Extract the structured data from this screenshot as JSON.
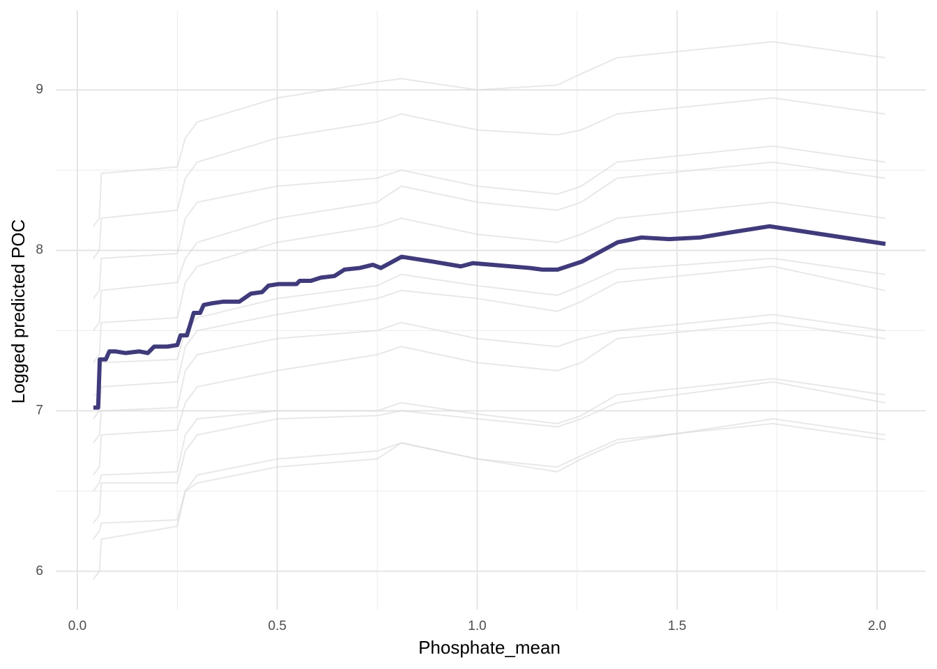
{
  "chart_data": {
    "type": "line",
    "x_label": "Phosphate_mean",
    "y_label": "Logged predicted POC",
    "xlim": [
      -0.054,
      2.122
    ],
    "ylim": [
      5.76,
      9.495
    ],
    "xticks": [
      {
        "value": 0,
        "label": "0.0"
      },
      0.5,
      {
        "value": 1,
        "label": "1.0"
      },
      1.5,
      {
        "value": 2,
        "label": "2.0"
      }
    ],
    "yticks": [
      6,
      7,
      8,
      9
    ],
    "x_minor_ticks": [
      0.25,
      0.75,
      1.25,
      1.75
    ],
    "y_minor_ticks": [
      6.5,
      7.5,
      8.5
    ],
    "grid": true,
    "series": [
      {
        "color": "#3f3b7b",
        "x": [
          0.04,
          0.052,
          0.056,
          0.071,
          0.08,
          0.096,
          0.12,
          0.155,
          0.176,
          0.192,
          0.225,
          0.25,
          0.258,
          0.274,
          0.291,
          0.307,
          0.316,
          0.337,
          0.364,
          0.405,
          0.434,
          0.462,
          0.478,
          0.504,
          0.548,
          0.556,
          0.584,
          0.609,
          0.643,
          0.668,
          0.706,
          0.739,
          0.759,
          0.811,
          0.888,
          0.959,
          0.989,
          1.132,
          1.163,
          1.201,
          1.262,
          1.351,
          1.411,
          1.48,
          1.557,
          1.629,
          1.731,
          2.021
        ],
        "values": [
          7.02,
          7.02,
          7.32,
          7.32,
          7.37,
          7.37,
          7.36,
          7.37,
          7.36,
          7.4,
          7.4,
          7.41,
          7.47,
          7.47,
          7.61,
          7.61,
          7.66,
          7.67,
          7.68,
          7.68,
          7.73,
          7.74,
          7.78,
          7.79,
          7.79,
          7.81,
          7.81,
          7.83,
          7.84,
          7.88,
          7.89,
          7.91,
          7.89,
          7.96,
          7.93,
          7.9,
          7.92,
          7.89,
          7.88,
          7.88,
          7.93,
          8.05,
          8.08,
          8.07,
          8.08,
          8.11,
          8.15,
          8.04
        ]
      },
      {
        "color": "#d9d9d9",
        "x": [
          0.04,
          0.055,
          0.06,
          0.25,
          0.27,
          0.3,
          0.5,
          0.75,
          0.81,
          1.0,
          1.2,
          1.26,
          1.35,
          1.74,
          2.02
        ],
        "values": [
          8.15,
          8.2,
          8.48,
          8.52,
          8.7,
          8.8,
          8.95,
          9.05,
          9.07,
          9.0,
          9.03,
          9.1,
          9.2,
          9.3,
          9.2
        ]
      },
      {
        "color": "#d9d9d9",
        "x": [
          0.04,
          0.055,
          0.06,
          0.25,
          0.27,
          0.3,
          0.5,
          0.75,
          0.81,
          1.0,
          1.2,
          1.26,
          1.35,
          1.74,
          2.02
        ],
        "values": [
          7.95,
          8.0,
          8.2,
          8.25,
          8.45,
          8.55,
          8.7,
          8.8,
          8.85,
          8.75,
          8.72,
          8.75,
          8.85,
          8.95,
          8.85
        ]
      },
      {
        "color": "#d9d9d9",
        "x": [
          0.04,
          0.055,
          0.06,
          0.25,
          0.27,
          0.3,
          0.5,
          0.75,
          0.81,
          1.0,
          1.2,
          1.26,
          1.35,
          1.74,
          2.02
        ],
        "values": [
          7.7,
          7.75,
          7.95,
          7.98,
          8.2,
          8.3,
          8.4,
          8.45,
          8.5,
          8.4,
          8.35,
          8.4,
          8.55,
          8.65,
          8.55
        ]
      },
      {
        "color": "#d9d9d9",
        "x": [
          0.04,
          0.055,
          0.06,
          0.25,
          0.27,
          0.3,
          0.5,
          0.75,
          0.81,
          1.0,
          1.2,
          1.26,
          1.35,
          1.74,
          2.02
        ],
        "values": [
          7.5,
          7.55,
          7.75,
          7.8,
          7.95,
          8.05,
          8.2,
          8.3,
          8.4,
          8.3,
          8.25,
          8.3,
          8.45,
          8.55,
          8.45
        ]
      },
      {
        "color": "#d9d9d9",
        "x": [
          0.04,
          0.055,
          0.06,
          0.25,
          0.27,
          0.3,
          0.5,
          0.75,
          0.81,
          1.0,
          1.2,
          1.26,
          1.35,
          1.74,
          2.02
        ],
        "values": [
          7.3,
          7.35,
          7.55,
          7.58,
          7.8,
          7.9,
          8.05,
          8.15,
          8.2,
          8.1,
          8.05,
          8.1,
          8.2,
          8.3,
          8.2
        ]
      },
      {
        "color": "#d9d9d9",
        "x": [
          0.04,
          0.055,
          0.06,
          0.25,
          0.27,
          0.3,
          0.5,
          0.75,
          0.81,
          1.0,
          1.2,
          1.26,
          1.35,
          1.74,
          2.02
        ],
        "values": [
          7.1,
          7.1,
          7.3,
          7.32,
          7.5,
          7.58,
          7.7,
          7.78,
          7.85,
          7.78,
          7.72,
          7.78,
          7.88,
          7.95,
          7.85
        ]
      },
      {
        "color": "#d9d9d9",
        "x": [
          0.04,
          0.055,
          0.06,
          0.25,
          0.27,
          0.3,
          0.5,
          0.75,
          0.81,
          1.0,
          1.2,
          1.26,
          1.35,
          1.74,
          2.02
        ],
        "values": [
          6.95,
          7.0,
          7.15,
          7.18,
          7.4,
          7.5,
          7.6,
          7.7,
          7.75,
          7.7,
          7.62,
          7.68,
          7.8,
          7.9,
          7.75
        ]
      },
      {
        "color": "#d9d9d9",
        "x": [
          0.04,
          0.055,
          0.06,
          0.25,
          0.27,
          0.3,
          0.5,
          0.75,
          0.81,
          1.0,
          1.2,
          1.26,
          1.35,
          1.74,
          2.02
        ],
        "values": [
          6.8,
          6.85,
          7.0,
          7.02,
          7.25,
          7.35,
          7.45,
          7.5,
          7.55,
          7.45,
          7.4,
          7.45,
          7.5,
          7.6,
          7.5
        ]
      },
      {
        "color": "#d9d9d9",
        "x": [
          0.04,
          0.055,
          0.06,
          0.25,
          0.27,
          0.3,
          0.5,
          0.75,
          0.81,
          1.0,
          1.2,
          1.26,
          1.35,
          1.74,
          2.02
        ],
        "values": [
          6.6,
          6.65,
          6.85,
          6.88,
          7.05,
          7.15,
          7.25,
          7.35,
          7.4,
          7.3,
          7.25,
          7.3,
          7.45,
          7.55,
          7.45
        ]
      },
      {
        "color": "#d9d9d9",
        "x": [
          0.04,
          0.055,
          0.06,
          0.25,
          0.27,
          0.3,
          0.5,
          0.75,
          0.81,
          1.0,
          1.2,
          1.26,
          1.35,
          1.74,
          2.02
        ],
        "values": [
          6.5,
          6.55,
          6.6,
          6.62,
          6.85,
          6.95,
          7.0,
          7.0,
          7.05,
          6.98,
          6.92,
          6.97,
          7.1,
          7.2,
          7.1
        ]
      },
      {
        "color": "#d9d9d9",
        "x": [
          0.04,
          0.055,
          0.06,
          0.25,
          0.27,
          0.3,
          0.5,
          0.75,
          0.81,
          1.0,
          1.2,
          1.26,
          1.35,
          1.74,
          2.02
        ],
        "values": [
          6.3,
          6.35,
          6.55,
          6.55,
          6.75,
          6.85,
          6.95,
          6.97,
          7.0,
          6.95,
          6.9,
          6.95,
          7.05,
          7.18,
          7.05
        ]
      },
      {
        "color": "#d9d9d9",
        "x": [
          0.04,
          0.055,
          0.06,
          0.25,
          0.27,
          0.3,
          0.5,
          0.75,
          0.81,
          1.0,
          1.2,
          1.26,
          1.35,
          1.74,
          2.02
        ],
        "values": [
          6.2,
          6.25,
          6.3,
          6.32,
          6.5,
          6.55,
          6.65,
          6.7,
          6.8,
          6.7,
          6.65,
          6.72,
          6.82,
          6.92,
          6.82
        ]
      },
      {
        "color": "#d9d9d9",
        "x": [
          0.04,
          0.055,
          0.06,
          0.25,
          0.27,
          0.3,
          0.5,
          0.75,
          0.81,
          1.0,
          1.2,
          1.26,
          1.35,
          1.74,
          2.02
        ],
        "values": [
          5.95,
          6.0,
          6.2,
          6.28,
          6.5,
          6.6,
          6.7,
          6.75,
          6.8,
          6.7,
          6.62,
          6.7,
          6.8,
          6.95,
          6.85
        ]
      }
    ]
  }
}
